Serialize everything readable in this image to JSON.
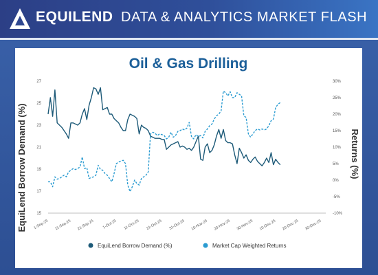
{
  "header": {
    "brand": "EQUILEND",
    "tagline": "DATA & ANALYTICS MARKET FLASH"
  },
  "colors": {
    "demand": "#1d5a78",
    "returns": "#2a9bd1",
    "title": "#1b5f99",
    "axis_text": "#555555"
  },
  "chart_data": {
    "type": "line",
    "title": "Oil & Gas Drilling",
    "ylabel": "EquiLend Borrow Demand (%)",
    "y2label": "Returns (%)",
    "ylim": [
      15,
      27
    ],
    "y_ticks": [
      15,
      17,
      19,
      21,
      23,
      25,
      27
    ],
    "y2lim": [
      -10,
      30
    ],
    "y2_ticks": [
      "-10%",
      "-5%",
      "0%",
      "5%",
      "10%",
      "15%",
      "20%",
      "25%",
      "30%"
    ],
    "xlim": [
      0,
      122
    ],
    "x_ticks": [
      {
        "x": 0,
        "label": "1-Sep-25"
      },
      {
        "x": 10,
        "label": "11-Sep-25"
      },
      {
        "x": 20,
        "label": "21-Sep-25"
      },
      {
        "x": 30,
        "label": "1-Oct-25"
      },
      {
        "x": 40,
        "label": "11-Oct-25"
      },
      {
        "x": 50,
        "label": "21-Oct-25"
      },
      {
        "x": 60,
        "label": "31-Oct-25"
      },
      {
        "x": 70,
        "label": "10-Nov-25"
      },
      {
        "x": 80,
        "label": "20-Nov-25"
      },
      {
        "x": 90,
        "label": "30-Nov-25"
      },
      {
        "x": 100,
        "label": "10-Dec-25"
      },
      {
        "x": 110,
        "label": "20-Dec-25"
      },
      {
        "x": 120,
        "label": "30-Dec-25"
      }
    ],
    "legend_position": "bottom",
    "grid": false,
    "series": [
      {
        "name": "EquiLend Borrow Demand (%)",
        "axis": "left",
        "style": "solid",
        "points": [
          [
            0,
            24.0
          ],
          [
            1,
            25.5
          ],
          [
            2,
            23.8
          ],
          [
            3,
            26.2
          ],
          [
            4,
            23.2
          ],
          [
            5,
            23.0
          ],
          [
            6,
            22.8
          ],
          [
            7,
            22.5
          ],
          [
            8,
            22.2
          ],
          [
            9,
            21.8
          ],
          [
            10,
            23.2
          ],
          [
            11,
            23.2
          ],
          [
            12,
            23.1
          ],
          [
            13,
            23.0
          ],
          [
            14,
            23.2
          ],
          [
            15,
            24.0
          ],
          [
            16,
            24.5
          ],
          [
            17,
            23.5
          ],
          [
            18,
            24.8
          ],
          [
            19,
            25.5
          ],
          [
            20,
            26.4
          ],
          [
            21,
            26.3
          ],
          [
            22,
            25.8
          ],
          [
            23,
            26.4
          ],
          [
            24,
            24.4
          ],
          [
            25,
            24.5
          ],
          [
            26,
            24.6
          ],
          [
            27,
            24.0
          ],
          [
            28,
            24.0
          ],
          [
            29,
            23.6
          ],
          [
            30,
            23.4
          ],
          [
            31,
            23.2
          ],
          [
            32,
            22.8
          ],
          [
            33,
            22.5
          ],
          [
            34,
            22.5
          ],
          [
            35,
            23.5
          ],
          [
            36,
            24.0
          ],
          [
            37,
            23.9
          ],
          [
            38,
            23.8
          ],
          [
            39,
            23.6
          ],
          [
            40,
            22.2
          ],
          [
            41,
            23.0
          ],
          [
            42,
            22.8
          ],
          [
            43,
            22.7
          ],
          [
            44,
            22.5
          ],
          [
            45,
            22.0
          ],
          [
            46,
            21.9
          ],
          [
            47,
            21.8
          ],
          [
            48,
            21.8
          ],
          [
            49,
            21.8
          ],
          [
            50,
            21.7
          ],
          [
            51,
            21.7
          ],
          [
            52,
            20.8
          ],
          [
            53,
            21.0
          ],
          [
            54,
            21.2
          ],
          [
            55,
            21.3
          ],
          [
            56,
            21.4
          ],
          [
            57,
            21.5
          ],
          [
            58,
            21.0
          ],
          [
            59,
            21.1
          ],
          [
            60,
            21.0
          ],
          [
            61,
            20.8
          ],
          [
            62,
            20.9
          ],
          [
            63,
            20.7
          ],
          [
            64,
            21.0
          ],
          [
            65,
            21.5
          ],
          [
            66,
            22.0
          ],
          [
            67,
            19.9
          ],
          [
            68,
            19.8
          ],
          [
            69,
            21.0
          ],
          [
            70,
            21.3
          ],
          [
            71,
            20.5
          ],
          [
            72,
            20.7
          ],
          [
            73,
            21.2
          ],
          [
            74,
            22.0
          ],
          [
            75,
            22.6
          ],
          [
            76,
            21.8
          ],
          [
            77,
            22.6
          ],
          [
            78,
            21.6
          ],
          [
            79,
            21.4
          ],
          [
            80,
            21.4
          ],
          [
            81,
            21.3
          ],
          [
            82,
            20.3
          ],
          [
            83,
            19.5
          ],
          [
            84,
            20.9
          ],
          [
            85,
            20.5
          ],
          [
            86,
            20.0
          ],
          [
            87,
            20.3
          ],
          [
            88,
            19.8
          ],
          [
            89,
            19.6
          ],
          [
            90,
            19.9
          ],
          [
            91,
            20.1
          ],
          [
            92,
            19.7
          ],
          [
            93,
            19.5
          ],
          [
            94,
            19.3
          ],
          [
            95,
            19.6
          ],
          [
            96,
            20.0
          ],
          [
            97,
            19.6
          ],
          [
            98,
            20.5
          ],
          [
            99,
            19.4
          ],
          [
            100,
            19.9
          ],
          [
            101,
            19.6
          ],
          [
            102,
            19.4
          ]
        ]
      },
      {
        "name": "Market Cap Weighted Returns",
        "axis": "right",
        "style": "dashed",
        "points": [
          [
            0,
            -0.5
          ],
          [
            1,
            -0.5
          ],
          [
            2,
            -2.0
          ],
          [
            3,
            1.0
          ],
          [
            4,
            0.3
          ],
          [
            5,
            0.5
          ],
          [
            6,
            1.0
          ],
          [
            7,
            1.5
          ],
          [
            8,
            1.0
          ],
          [
            9,
            2.5
          ],
          [
            10,
            3.0
          ],
          [
            11,
            3.5
          ],
          [
            12,
            3.2
          ],
          [
            13,
            3.5
          ],
          [
            14,
            4.0
          ],
          [
            15,
            7.0
          ],
          [
            16,
            3.5
          ],
          [
            17,
            3.8
          ],
          [
            18,
            0.5
          ],
          [
            19,
            0.8
          ],
          [
            20,
            1.0
          ],
          [
            21,
            1.5
          ],
          [
            22,
            4.5
          ],
          [
            23,
            3.2
          ],
          [
            24,
            3.0
          ],
          [
            25,
            2.0
          ],
          [
            26,
            1.5
          ],
          [
            27,
            0.5
          ],
          [
            28,
            -0.5
          ],
          [
            29,
            2.0
          ],
          [
            30,
            5.0
          ],
          [
            31,
            5.5
          ],
          [
            32,
            5.8
          ],
          [
            33,
            6.0
          ],
          [
            34,
            5.0
          ],
          [
            35,
            -1.5
          ],
          [
            36,
            -3.5
          ],
          [
            37,
            -2.0
          ],
          [
            38,
            0.0
          ],
          [
            39,
            -1.0
          ],
          [
            40,
            -1.5
          ],
          [
            41,
            0.5
          ],
          [
            42,
            1.0
          ],
          [
            43,
            1.5
          ],
          [
            44,
            2.5
          ],
          [
            45,
            14.0
          ],
          [
            46,
            14.5
          ],
          [
            47,
            14.2
          ],
          [
            48,
            13.5
          ],
          [
            49,
            14.0
          ],
          [
            50,
            13.8
          ],
          [
            51,
            13.5
          ],
          [
            52,
            12.5
          ],
          [
            53,
            13.0
          ],
          [
            54,
            14.5
          ],
          [
            55,
            13.0
          ],
          [
            56,
            13.5
          ],
          [
            57,
            14.8
          ],
          [
            58,
            15.0
          ],
          [
            59,
            15.5
          ],
          [
            60,
            15.2
          ],
          [
            61,
            15.8
          ],
          [
            62,
            17.5
          ],
          [
            63,
            13.2
          ],
          [
            64,
            12.5
          ],
          [
            65,
            13.8
          ],
          [
            66,
            13.2
          ],
          [
            67,
            13.5
          ],
          [
            68,
            12.8
          ],
          [
            69,
            14.8
          ],
          [
            70,
            15.5
          ],
          [
            71,
            16.5
          ],
          [
            72,
            17.0
          ],
          [
            73,
            18.5
          ],
          [
            74,
            19.5
          ],
          [
            75,
            20.0
          ],
          [
            76,
            21.0
          ],
          [
            77,
            27.0
          ],
          [
            78,
            26.5
          ],
          [
            79,
            25.5
          ],
          [
            80,
            26.8
          ],
          [
            81,
            25.0
          ],
          [
            82,
            25.0
          ],
          [
            83,
            26.5
          ],
          [
            84,
            26.0
          ],
          [
            85,
            25.5
          ],
          [
            86,
            19.5
          ],
          [
            87,
            19.0
          ],
          [
            88,
            14.0
          ],
          [
            89,
            13.0
          ],
          [
            90,
            14.0
          ],
          [
            91,
            15.0
          ],
          [
            92,
            15.5
          ],
          [
            93,
            15.2
          ],
          [
            94,
            15.5
          ],
          [
            95,
            15.2
          ],
          [
            96,
            15.5
          ],
          [
            97,
            16.5
          ],
          [
            98,
            18.0
          ],
          [
            99,
            18.5
          ],
          [
            100,
            22.0
          ],
          [
            101,
            23.0
          ],
          [
            102,
            23.5
          ]
        ]
      }
    ]
  }
}
